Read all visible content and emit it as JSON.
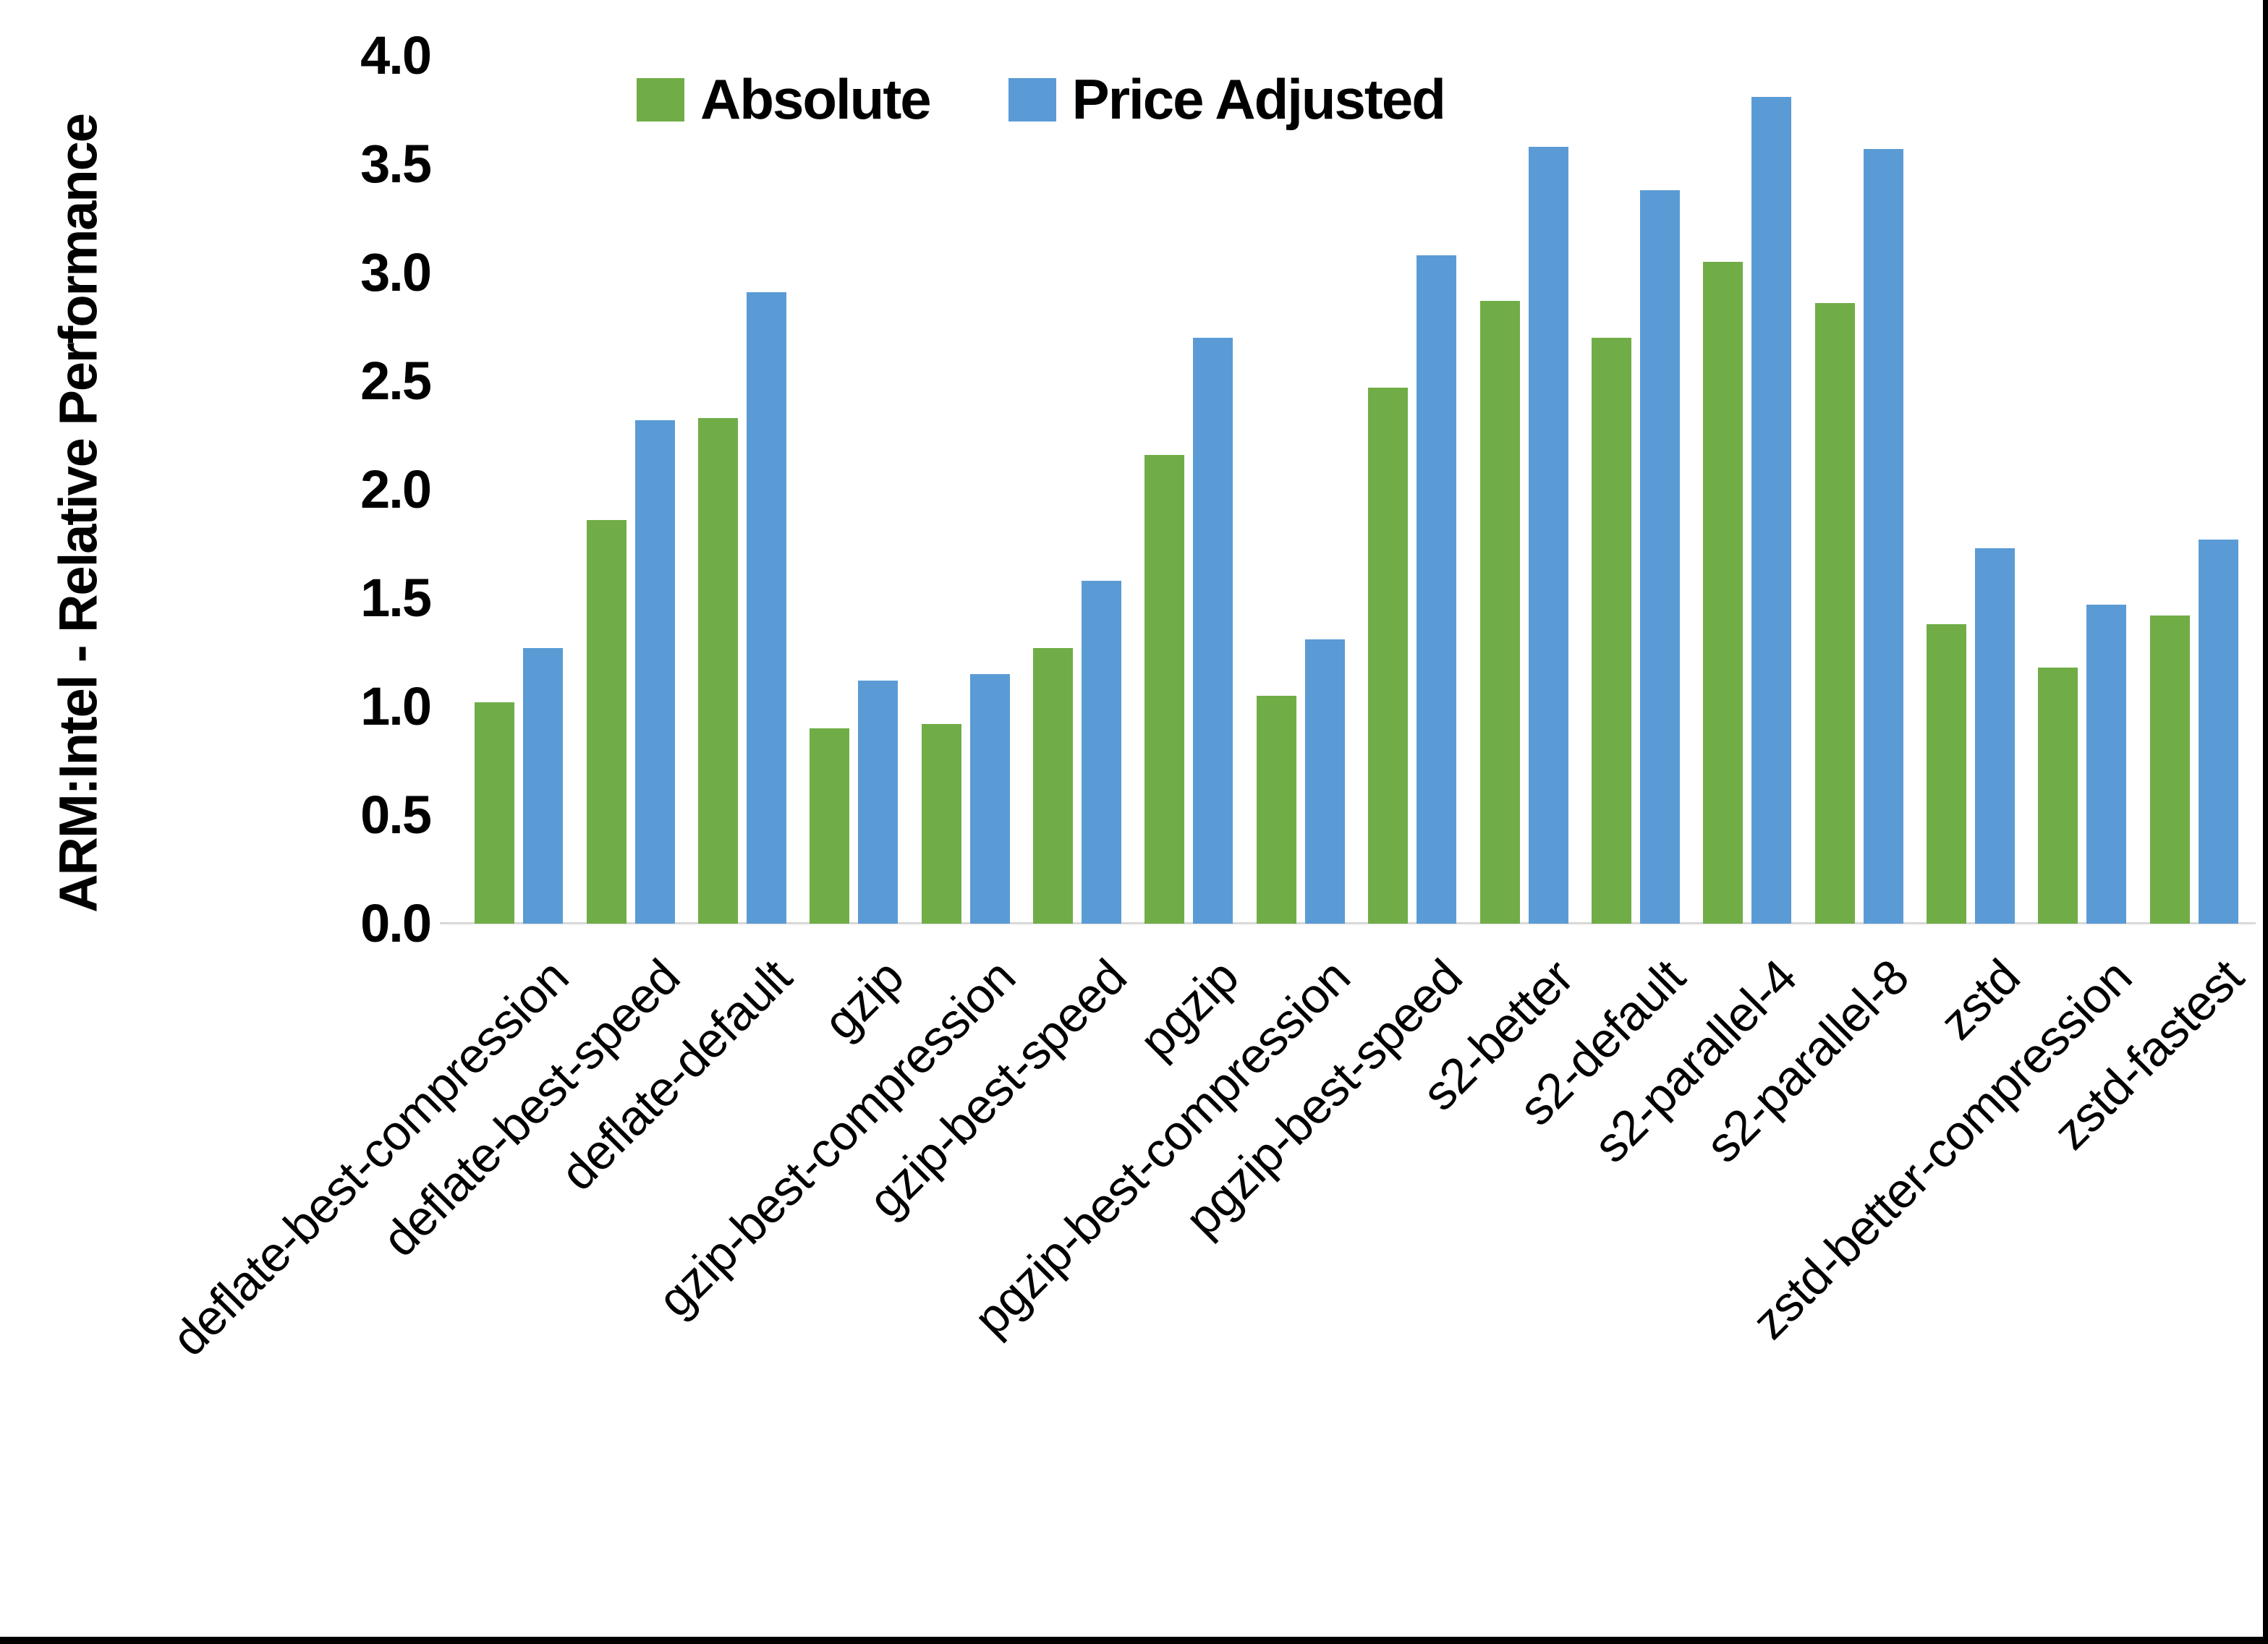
{
  "y_axis": {
    "title": "ARM:Intel - Relative Performance",
    "ticks": [
      "4.0",
      "3.5",
      "3.0",
      "2.5",
      "2.0",
      "1.5",
      "1.0",
      "0.5",
      "0.0"
    ]
  },
  "legend": {
    "items": [
      {
        "label": "Absolute",
        "color": "#70AD47"
      },
      {
        "label": "Price Adjusted",
        "color": "#5B9BD5"
      }
    ]
  },
  "chart_data": {
    "type": "bar",
    "title": "",
    "xlabel": "",
    "ylabel": "ARM:Intel - Relative Performance",
    "ylim": [
      0.0,
      4.0
    ],
    "ytick_step": 0.5,
    "grid": false,
    "legend_position": "top",
    "categories": [
      "deflate-best-compression",
      "deflate-best-speed",
      "deflate-default",
      "gzip",
      "gzip-best-compression",
      "gzip-best-speed",
      "pgzip",
      "pgzip-best-compression",
      "pgzip-best-speed",
      "s2-better",
      "s2-default",
      "s2-parallel-4",
      "s2-parallel-8",
      "zstd",
      "zstd-better-compression",
      "zstd-fastest"
    ],
    "series": [
      {
        "name": "Absolute",
        "color": "#70AD47",
        "values": [
          1.02,
          1.86,
          2.33,
          0.9,
          0.92,
          1.27,
          2.16,
          1.05,
          2.47,
          2.87,
          2.7,
          3.05,
          2.86,
          1.38,
          1.18,
          1.42
        ]
      },
      {
        "name": "Price Adjusted",
        "color": "#5B9BD5",
        "values": [
          1.27,
          2.32,
          2.91,
          1.12,
          1.15,
          1.58,
          2.7,
          1.31,
          3.08,
          3.58,
          3.38,
          3.81,
          3.57,
          1.73,
          1.47,
          1.77
        ]
      }
    ]
  }
}
